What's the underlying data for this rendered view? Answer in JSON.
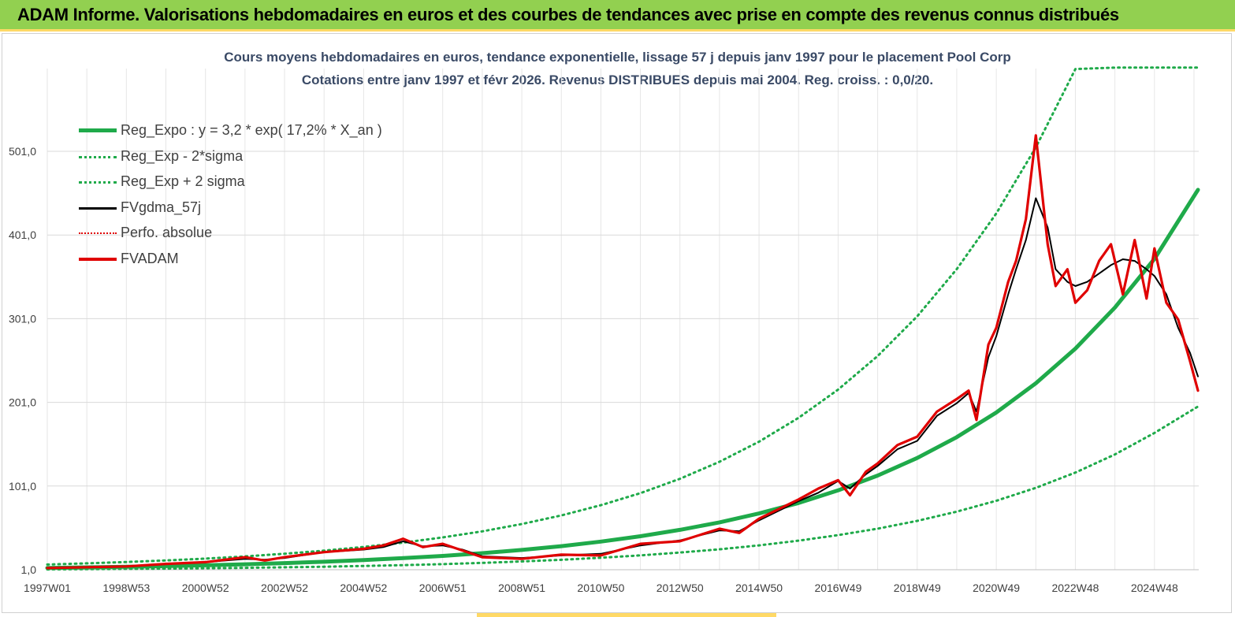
{
  "header": {
    "title": "ADAM Informe. Valorisations hebdomadaires en euros et des courbes de tendances avec prise en compte des revenus connus distribués"
  },
  "chart_data": {
    "type": "line",
    "title": "Cours moyens  hebdomadaires en euros, tendance exponentielle, lissage 57 j depuis janv 1997 pour le placement Pool Corp",
    "subtitle": "Cotations entre janv 1997  et févr 2026. Revenus DISTRIBUES  depuis mai 2004. Reg. croiss. : 0,0/20.",
    "xlabel": "",
    "ylabel": "",
    "x_range": [
      1997.0,
      2026.12
    ],
    "ylim": [
      1,
      601
    ],
    "y_ticks": [
      "1,0",
      "101,0",
      "201,0",
      "301,0",
      "401,0",
      "501,0"
    ],
    "y_tick_values": [
      1,
      101,
      201,
      301,
      401,
      501
    ],
    "x_ticks": [
      "1997W01",
      "1998W53",
      "2000W52",
      "2002W52",
      "2004W52",
      "2006W51",
      "2008W51",
      "2010W50",
      "2012W50",
      "2014W50",
      "2016W49",
      "2018W49",
      "2020W49",
      "2022W48",
      "2024W48"
    ],
    "x_tick_values": [
      1997.0,
      1999.0,
      2001.0,
      2003.0,
      2005.0,
      2007.0,
      2009.0,
      2011.0,
      2013.0,
      2015.0,
      2017.0,
      2019.0,
      2021.0,
      2023.0,
      2025.0
    ],
    "grid": true,
    "legend_position": "top-left",
    "legend": [
      {
        "label": "Reg_Expo : y = 3,2 * exp( 17,2% *  X_an )",
        "color": "#1faa4a",
        "style": "solid-thick"
      },
      {
        "label": "Reg_Exp - 2*sigma",
        "color": "#1faa4a",
        "style": "dotted"
      },
      {
        "label": "Reg_Exp + 2 sigma",
        "color": "#1faa4a",
        "style": "dotted"
      },
      {
        "label": "FVgdma_57j",
        "color": "#000000",
        "style": "solid"
      },
      {
        "label": "Perfo. absolue",
        "color": "#e00000",
        "style": "dotted"
      },
      {
        "label": "FVADAM",
        "color": "#e00000",
        "style": "solid-thick"
      }
    ],
    "series": [
      {
        "name": "Reg_Expo",
        "color": "#1faa4a",
        "x": [
          1997,
          1998,
          1999,
          2000,
          2001,
          2002,
          2003,
          2004,
          2005,
          2006,
          2007,
          2008,
          2009,
          2010,
          2011,
          2012,
          2013,
          2014,
          2015,
          2016,
          2017,
          2018,
          2019,
          2020,
          2021,
          2022,
          2023,
          2024,
          2025,
          2026.1
        ],
        "values": [
          3.2,
          3.8,
          4.5,
          5.3,
          6.3,
          7.5,
          8.9,
          10.5,
          12.5,
          14.8,
          17.5,
          20.8,
          24.6,
          29.2,
          34.6,
          41.0,
          48.6,
          57.6,
          68.2,
          80.8,
          95.8,
          113.5,
          134.5,
          159.4,
          188.9,
          223.8,
          265.2,
          314.3,
          372.5,
          455.0
        ]
      },
      {
        "name": "Reg_Exp - 2*sigma",
        "color": "#1faa4a",
        "x": [
          1997,
          1998,
          1999,
          2000,
          2001,
          2002,
          2003,
          2004,
          2005,
          2006,
          2007,
          2008,
          2009,
          2010,
          2011,
          2012,
          2013,
          2014,
          2015,
          2016,
          2017,
          2018,
          2019,
          2020,
          2021,
          2022,
          2023,
          2024,
          2025,
          2026.1
        ],
        "values": [
          1.4,
          1.7,
          2.0,
          2.3,
          2.8,
          3.3,
          3.9,
          4.6,
          5.5,
          6.5,
          7.7,
          9.2,
          10.9,
          12.9,
          15.3,
          18.1,
          21.5,
          25.4,
          30.1,
          35.7,
          42.3,
          50.1,
          59.4,
          70.4,
          83.4,
          98.8,
          117.1,
          138.8,
          164.5,
          196.0
        ]
      },
      {
        "name": "Reg_Exp + 2 sigma",
        "color": "#1faa4a",
        "x": [
          1997,
          1998,
          1999,
          2000,
          2001,
          2002,
          2003,
          2004,
          2005,
          2006,
          2007,
          2008,
          2009,
          2010,
          2011,
          2012,
          2013,
          2014,
          2015,
          2016,
          2017,
          2018,
          2019,
          2020,
          2021,
          2022,
          2023,
          2024,
          2025,
          2026.1
        ],
        "values": [
          7.2,
          8.6,
          10.2,
          12.1,
          14.3,
          16.9,
          20.1,
          23.8,
          28.2,
          33.4,
          39.6,
          46.9,
          55.6,
          65.9,
          78.1,
          92.5,
          109.7,
          130.0,
          154.0,
          182.5,
          216.3,
          256.4,
          303.8,
          360.1,
          426.7,
          505.7,
          599.3,
          601.0,
          601.0,
          601.0
        ]
      },
      {
        "name": "FVgdma_57j",
        "color": "#000000",
        "x": [
          1997,
          1998,
          1999,
          2000,
          2001,
          2002,
          2002.5,
          2003,
          2004,
          2005,
          2005.5,
          2006.0,
          2006.5,
          2007,
          2007.5,
          2008,
          2009,
          2010,
          2011,
          2012,
          2013,
          2014,
          2014.5,
          2015,
          2016,
          2016.5,
          2017.0,
          2017.3,
          2017.7,
          2018,
          2018.5,
          2019,
          2019.5,
          2020,
          2020.3,
          2020.5,
          2020.8,
          2021.0,
          2021.3,
          2021.5,
          2021.75,
          2022.0,
          2022.3,
          2022.5,
          2022.8,
          2023.0,
          2023.3,
          2023.6,
          2023.9,
          2024.2,
          2024.5,
          2024.8,
          2025.0,
          2025.3,
          2025.6,
          2025.9,
          2026.1
        ],
        "values": [
          3,
          4,
          5,
          8,
          10,
          14,
          13,
          15,
          22,
          25,
          28,
          35,
          29,
          30,
          25,
          17,
          15,
          18,
          20,
          30,
          36,
          48,
          47,
          60,
          83,
          93,
          107,
          98,
          115,
          125,
          145,
          155,
          185,
          200,
          212,
          190,
          255,
          280,
          330,
          360,
          395,
          445,
          410,
          360,
          345,
          340,
          345,
          355,
          365,
          372,
          370,
          360,
          352,
          330,
          290,
          260,
          232
        ]
      },
      {
        "name": "FVADAM",
        "color": "#e00000",
        "x": [
          1997,
          1998,
          1999,
          2000,
          2001,
          2002,
          2002.5,
          2003,
          2004,
          2005,
          2005.5,
          2006.0,
          2006.5,
          2007,
          2007.5,
          2008,
          2009,
          2010,
          2011,
          2012,
          2013,
          2014,
          2014.5,
          2015,
          2016,
          2016.5,
          2017.0,
          2017.3,
          2017.7,
          2018,
          2018.5,
          2019,
          2019.5,
          2020,
          2020.3,
          2020.5,
          2020.8,
          2021.0,
          2021.3,
          2021.5,
          2021.75,
          2022.0,
          2022.3,
          2022.5,
          2022.8,
          2023.0,
          2023.3,
          2023.6,
          2023.9,
          2024.2,
          2024.5,
          2024.8,
          2025.0,
          2025.3,
          2025.6,
          2025.9,
          2026.1
        ],
        "values": [
          3,
          4,
          5,
          8,
          10,
          16,
          12,
          16,
          22,
          26,
          30,
          38,
          28,
          32,
          24,
          16,
          14,
          19,
          18,
          32,
          35,
          50,
          45,
          62,
          85,
          98,
          108,
          90,
          118,
          128,
          150,
          160,
          190,
          205,
          215,
          180,
          270,
          290,
          345,
          370,
          420,
          520,
          390,
          340,
          360,
          320,
          335,
          370,
          390,
          330,
          395,
          325,
          385,
          320,
          300,
          250,
          215
        ]
      }
    ]
  }
}
